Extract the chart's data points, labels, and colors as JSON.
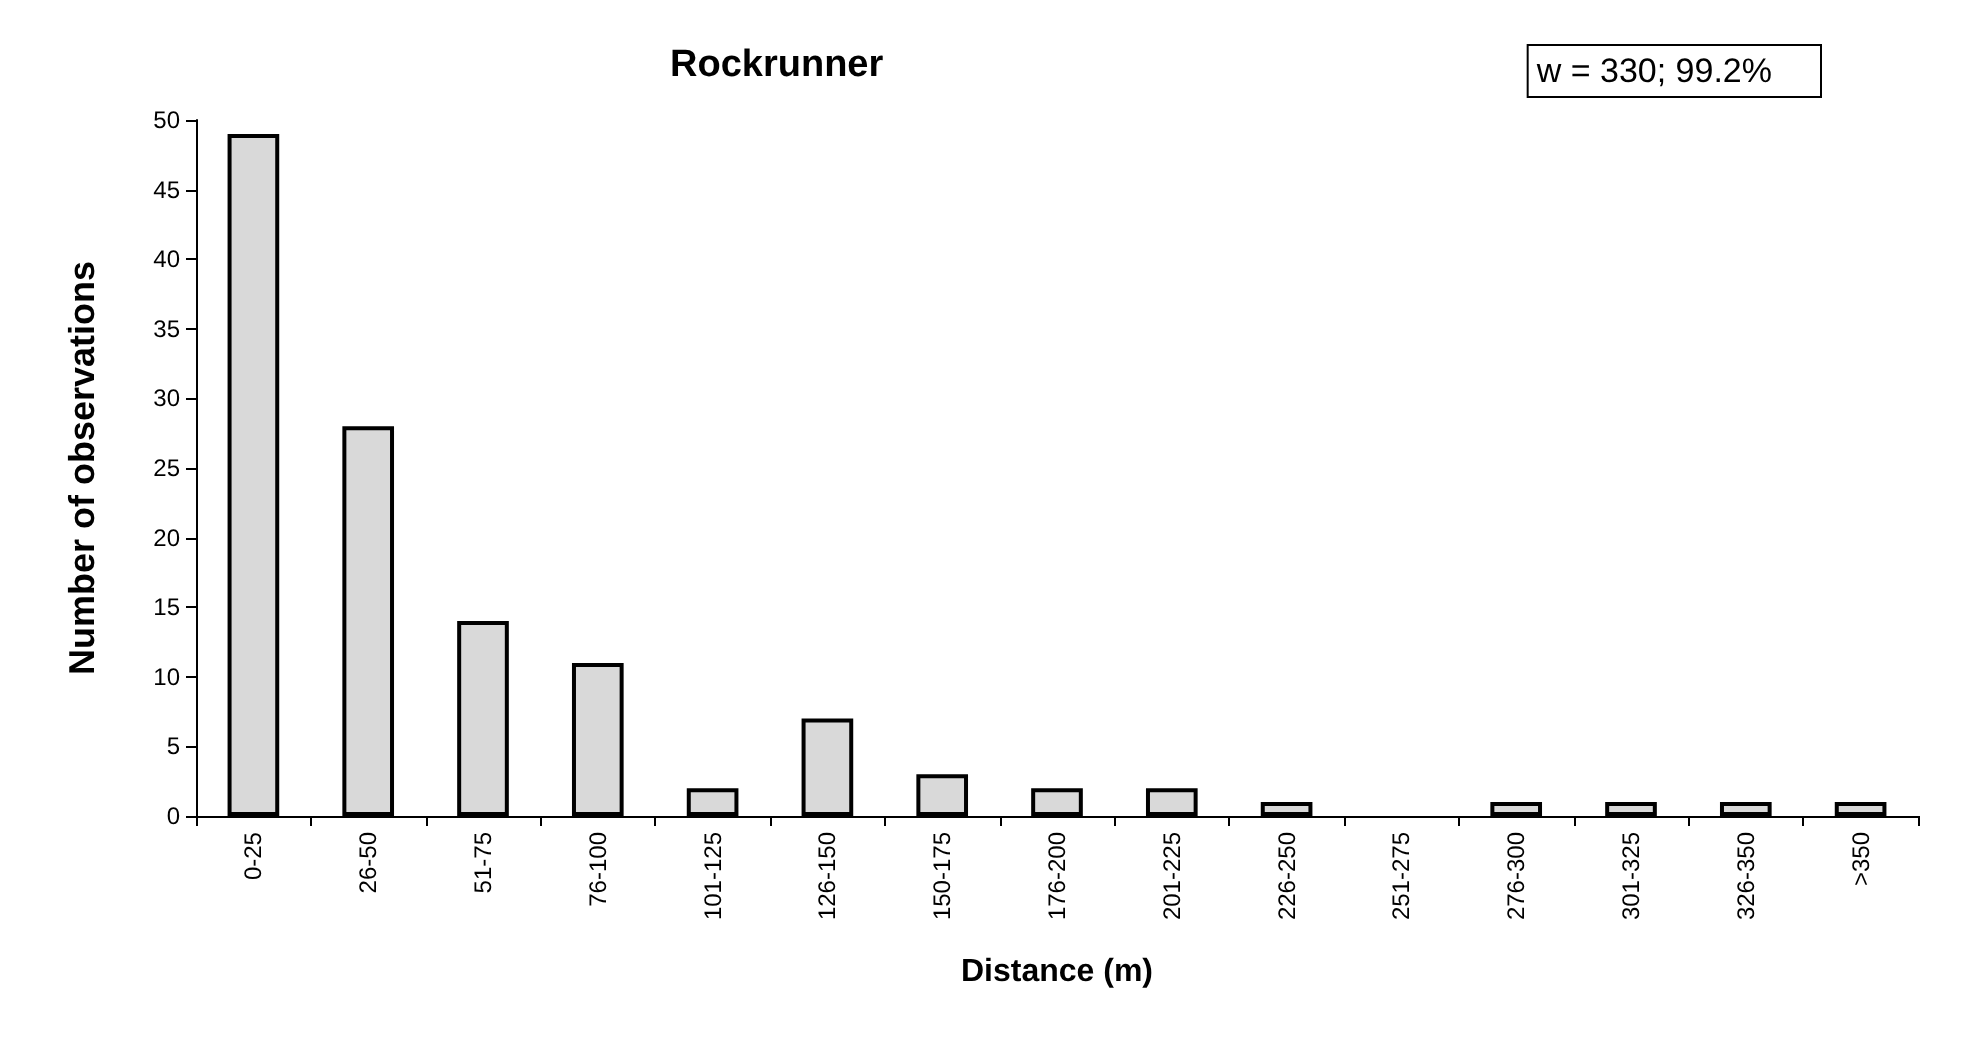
{
  "chart_data": {
    "type": "bar",
    "title": "Rockrunner",
    "xlabel": "Distance (m)",
    "ylabel": "Number of observations",
    "annotations": [
      "w = 330; 99.2%"
    ],
    "categories": [
      "0-25",
      "26-50",
      "51-75",
      "76-100",
      "101-125",
      "126-150",
      "150-175",
      "176-200",
      "201-225",
      "226-250",
      "251-275",
      "276-300",
      "301-325",
      "326-350",
      ">350"
    ],
    "values": [
      49,
      28,
      14,
      11,
      2,
      7,
      3,
      2,
      2,
      1,
      null,
      1,
      1,
      1,
      1
    ],
    "color": "#d9d9d9",
    "ylim": [
      0,
      50
    ],
    "yticks": [
      0,
      5,
      10,
      15,
      20,
      25,
      30,
      35,
      40,
      45,
      50
    ],
    "grid": false
  }
}
